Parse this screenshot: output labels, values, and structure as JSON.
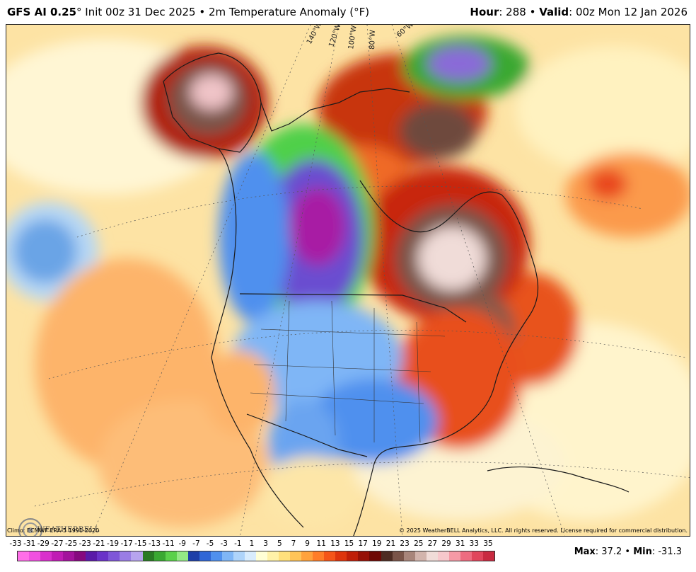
{
  "header": {
    "model": "GFS AI 0.25",
    "init": "° Init 00z 31 Dec 2025 • 2m Temperature Anomaly (°F)",
    "hour_label": "Hour",
    "hour_value": ": 288 • ",
    "valid_label": "Valid",
    "valid_value": ": 00z Mon 12 Jan 2026"
  },
  "map": {
    "region": "North America",
    "longitude_labels": [
      "140°W",
      "120°W",
      "100°W",
      "80°W",
      "60°W"
    ]
  },
  "footer": {
    "climo": "Climo: ECMWF ERA-5 1991-2020",
    "copyright": "© 2025 WeatherBELL Analytics, LLC. All rights reserved. License required for commercial distribution.",
    "max_label": "Max",
    "max_value": ": 37.2 • ",
    "min_label": "Min",
    "min_value": ": -31.3",
    "logo_text": "WEATHERBELL"
  },
  "colorbar": {
    "labels": [
      "-33",
      "-31",
      "-29",
      "-27",
      "-25",
      "-23",
      "-21",
      "-19",
      "-17",
      "-15",
      "-13",
      "-11",
      "-9",
      "-7",
      "-5",
      "-3",
      "-1",
      "1",
      "3",
      "5",
      "7",
      "9",
      "11",
      "13",
      "15",
      "17",
      "19",
      "21",
      "23",
      "25",
      "27",
      "29",
      "31",
      "33",
      "35"
    ],
    "colors": [
      "#ff6ee8",
      "#f050e0",
      "#d930cc",
      "#c01cb4",
      "#a3129c",
      "#86087f",
      "#5a1aa8",
      "#6a32c8",
      "#7f56d8",
      "#9a7de4",
      "#b7a4ee",
      "#2a7a24",
      "#3aa832",
      "#5ad04a",
      "#93e885",
      "#1e3fa8",
      "#2f66d6",
      "#4f90ee",
      "#7fb6f6",
      "#aed4fa",
      "#d8ecfd",
      "#ffffd6",
      "#fff2a8",
      "#ffe07c",
      "#ffc458",
      "#ffa23c",
      "#ff7d28",
      "#f55518",
      "#de340c",
      "#bf1e08",
      "#961006",
      "#6e0804",
      "#4e2c22",
      "#7a5448",
      "#a8857a",
      "#d2b4ac",
      "#f0dcd8",
      "#f7c8cc",
      "#f59aa6",
      "#ee6c80",
      "#e0465c",
      "#c82a40"
    ]
  },
  "colors": {
    "ocean_base": "#fcd28a",
    "border": "#1a1a1a"
  }
}
